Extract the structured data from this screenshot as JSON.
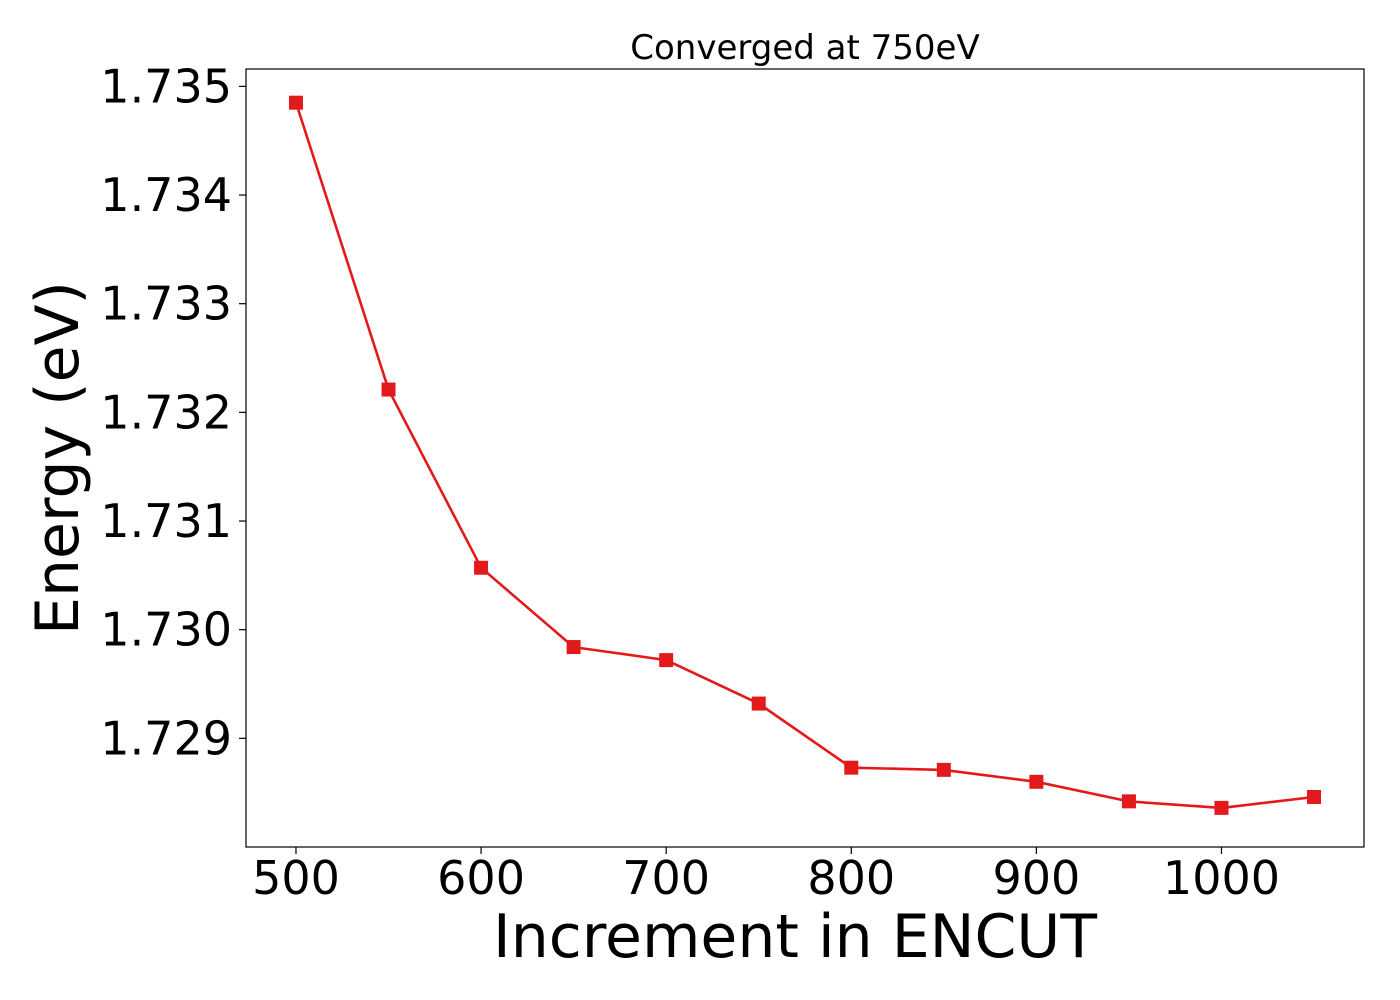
{
  "chart_data": {
    "type": "line",
    "title": "Converged at 750eV",
    "xlabel": "Increment in ENCUT",
    "ylabel": "Energy (eV)",
    "xlim": [
      473,
      1077
    ],
    "ylim": [
      1.728,
      1.73516
    ],
    "x_ticks": [
      500,
      600,
      700,
      800,
      900,
      1000
    ],
    "x_tick_labels": [
      "500",
      "600",
      "700",
      "800",
      "900",
      "1000"
    ],
    "y_ticks": [
      1.729,
      1.73,
      1.731,
      1.732,
      1.733,
      1.734,
      1.735
    ],
    "y_tick_labels": [
      "1.729",
      "1.730",
      "1.731",
      "1.732",
      "1.733",
      "1.734",
      "1.735"
    ],
    "grid": false,
    "series": [
      {
        "color": "#e31a1c",
        "marker": "square",
        "x": [
          500,
          550,
          600,
          650,
          700,
          750,
          800,
          850,
          900,
          950,
          1000,
          1050
        ],
        "y": [
          1.73485,
          1.73221,
          1.73057,
          1.72984,
          1.72972,
          1.72932,
          1.72873,
          1.72871,
          1.7286,
          1.72842,
          1.72836,
          1.72846
        ]
      }
    ]
  }
}
